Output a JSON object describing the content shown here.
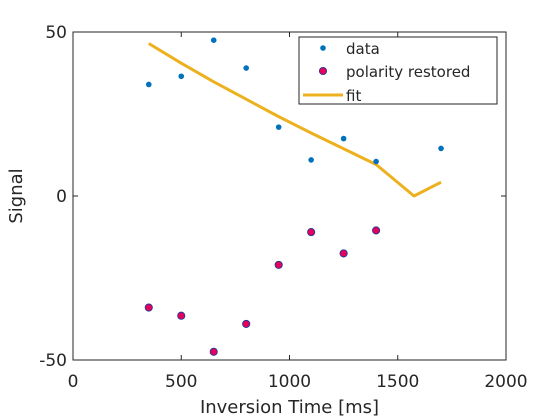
{
  "chart_data": {
    "type": "scatter",
    "title": "",
    "xlabel": "Inversion Time [ms]",
    "ylabel": "Signal",
    "xlim": [
      0,
      2000
    ],
    "ylim": [
      -50,
      50
    ],
    "xticks": [
      0,
      500,
      1000,
      1500,
      2000
    ],
    "yticks": [
      -50,
      0,
      50
    ],
    "xtick_labels": [
      "0",
      "500",
      "1000",
      "1500",
      "2000"
    ],
    "ytick_labels": [
      "-50",
      "0",
      "50"
    ],
    "grid": false,
    "legend_position": "top-right",
    "series": [
      {
        "name": "data",
        "kind": "markers",
        "color": "#0072BD",
        "x": [
          350,
          500,
          650,
          800,
          950,
          1100,
          1250,
          1400,
          1700
        ],
        "y": [
          34,
          36.5,
          47.5,
          39,
          21,
          11,
          17.5,
          10.5,
          14.5
        ]
      },
      {
        "name": "polarity restored",
        "kind": "filled-markers",
        "color": "#E6005C",
        "edge_color": "#1F3A93",
        "x": [
          350,
          500,
          650,
          800,
          950,
          1100,
          1250,
          1400
        ],
        "y": [
          -34,
          -36.5,
          -47.5,
          -39,
          -21,
          -11,
          -17.5,
          -10.5
        ]
      },
      {
        "name": "fit",
        "kind": "line",
        "color": "#EDB120",
        "x": [
          350,
          500,
          650,
          800,
          950,
          1100,
          1250,
          1400,
          1575,
          1700
        ],
        "y": [
          46.5,
          40.5,
          34.8,
          29.5,
          24.2,
          19.2,
          14.4,
          9.6,
          0,
          4.2
        ]
      }
    ]
  }
}
